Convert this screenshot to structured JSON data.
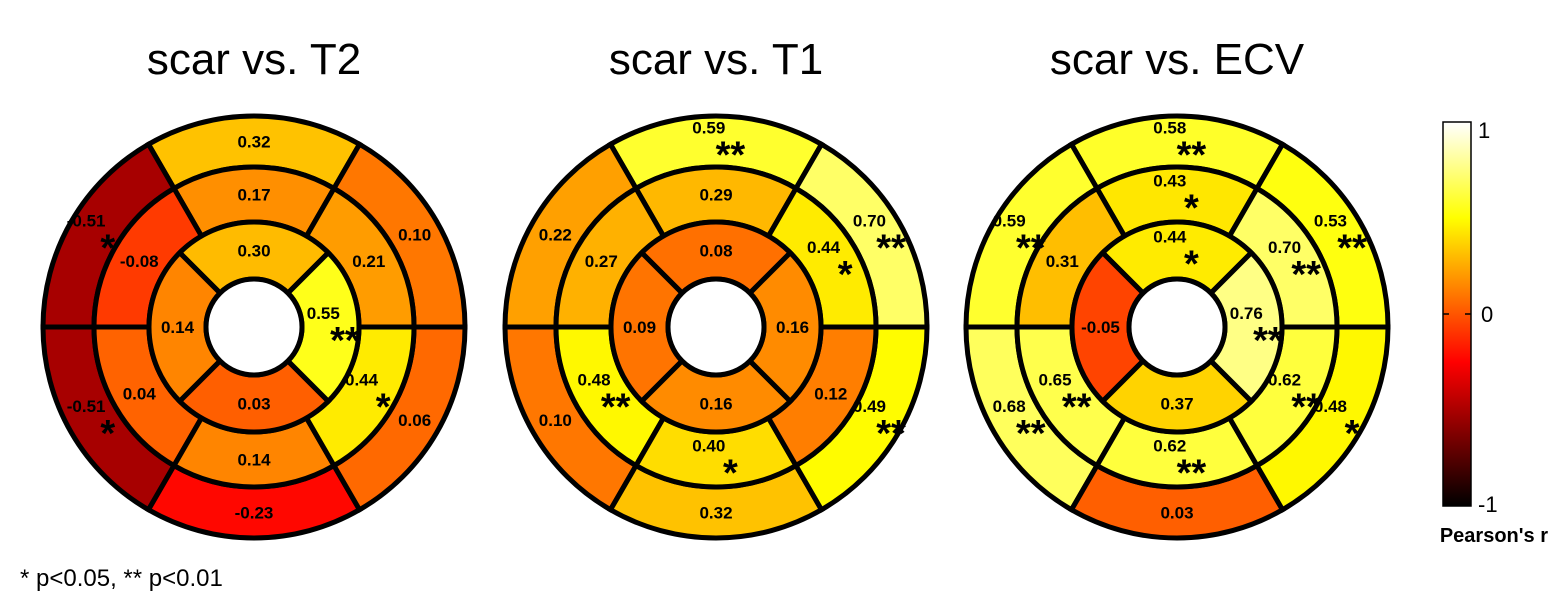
{
  "footnote": "* p<0.05, ** p<0.01",
  "colorbar": {
    "label": "Pearson's r",
    "range": [
      -1,
      1
    ],
    "ticks": [
      "1",
      "0",
      "-1"
    ],
    "colormap": "hot"
  },
  "chart_data": [
    {
      "type": "heatmap",
      "subtype": "bullseye-17-segment",
      "title": "scar vs. T2",
      "basal": [
        {
          "value": 0.32,
          "label": "0.32",
          "sig": ""
        },
        {
          "value": -0.51,
          "label": "-0.51",
          "sig": "*"
        },
        {
          "value": -0.51,
          "label": "-0.51",
          "sig": "*"
        },
        {
          "value": -0.23,
          "label": "-0.23",
          "sig": ""
        },
        {
          "value": 0.06,
          "label": "0.06",
          "sig": ""
        },
        {
          "value": 0.1,
          "label": "0.10",
          "sig": ""
        }
      ],
      "mid": [
        {
          "value": 0.17,
          "label": "0.17",
          "sig": ""
        },
        {
          "value": -0.08,
          "label": "-0.08",
          "sig": ""
        },
        {
          "value": 0.04,
          "label": "0.04",
          "sig": ""
        },
        {
          "value": 0.14,
          "label": "0.14",
          "sig": ""
        },
        {
          "value": 0.44,
          "label": "0.44",
          "sig": "*"
        },
        {
          "value": 0.21,
          "label": "0.21",
          "sig": ""
        }
      ],
      "apical": [
        {
          "value": 0.3,
          "label": "0.30",
          "sig": ""
        },
        {
          "value": 0.14,
          "label": "0.14",
          "sig": ""
        },
        {
          "value": 0.03,
          "label": "0.03",
          "sig": ""
        },
        {
          "value": 0.55,
          "label": "0.55",
          "sig": "**"
        }
      ]
    },
    {
      "type": "heatmap",
      "subtype": "bullseye-17-segment",
      "title": "scar vs. T1",
      "basal": [
        {
          "value": 0.59,
          "label": "0.59",
          "sig": "**"
        },
        {
          "value": 0.22,
          "label": "0.22",
          "sig": ""
        },
        {
          "value": 0.1,
          "label": "0.10",
          "sig": ""
        },
        {
          "value": 0.32,
          "label": "0.32",
          "sig": ""
        },
        {
          "value": 0.49,
          "label": "0.49",
          "sig": "**"
        },
        {
          "value": 0.7,
          "label": "0.70",
          "sig": "**"
        }
      ],
      "mid": [
        {
          "value": 0.29,
          "label": "0.29",
          "sig": ""
        },
        {
          "value": 0.27,
          "label": "0.27",
          "sig": ""
        },
        {
          "value": 0.48,
          "label": "0.48",
          "sig": "**"
        },
        {
          "value": 0.4,
          "label": "0.40",
          "sig": "*"
        },
        {
          "value": 0.12,
          "label": "0.12",
          "sig": ""
        },
        {
          "value": 0.44,
          "label": "0.44",
          "sig": "*"
        }
      ],
      "apical": [
        {
          "value": 0.08,
          "label": "0.08",
          "sig": ""
        },
        {
          "value": 0.09,
          "label": "0.09",
          "sig": ""
        },
        {
          "value": 0.16,
          "label": "0.16",
          "sig": ""
        },
        {
          "value": 0.16,
          "label": "0.16",
          "sig": ""
        }
      ]
    },
    {
      "type": "heatmap",
      "subtype": "bullseye-17-segment",
      "title": "scar vs. ECV",
      "basal": [
        {
          "value": 0.58,
          "label": "0.58",
          "sig": "**"
        },
        {
          "value": 0.59,
          "label": "0.59",
          "sig": "**"
        },
        {
          "value": 0.68,
          "label": "0.68",
          "sig": "**"
        },
        {
          "value": 0.03,
          "label": "0.03",
          "sig": ""
        },
        {
          "value": 0.48,
          "label": "0.48",
          "sig": "*"
        },
        {
          "value": 0.53,
          "label": "0.53",
          "sig": "**"
        }
      ],
      "mid": [
        {
          "value": 0.43,
          "label": "0.43",
          "sig": "*"
        },
        {
          "value": 0.31,
          "label": "0.31",
          "sig": ""
        },
        {
          "value": 0.65,
          "label": "0.65",
          "sig": "**"
        },
        {
          "value": 0.62,
          "label": "0.62",
          "sig": "**"
        },
        {
          "value": 0.62,
          "label": "0.62",
          "sig": "**"
        },
        {
          "value": 0.7,
          "label": "0.70",
          "sig": "**"
        }
      ],
      "apical": [
        {
          "value": 0.44,
          "label": "0.44",
          "sig": "*"
        },
        {
          "value": -0.05,
          "label": "-0.05",
          "sig": ""
        },
        {
          "value": 0.37,
          "label": "0.37",
          "sig": ""
        },
        {
          "value": 0.76,
          "label": "0.76",
          "sig": "**"
        }
      ]
    }
  ]
}
